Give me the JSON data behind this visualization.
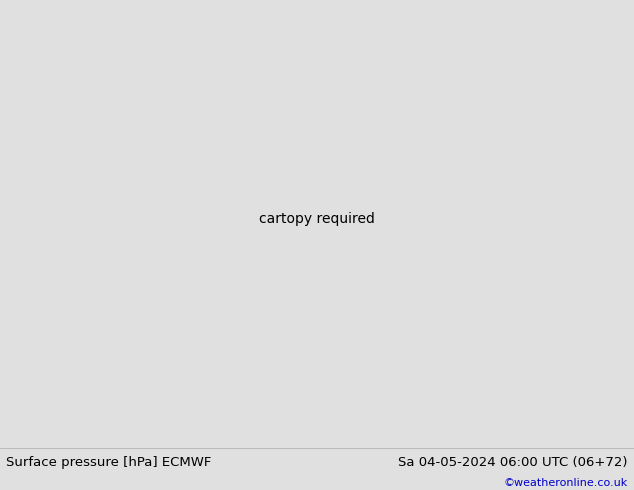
{
  "title_left": "Surface pressure [hPa] ECMWF",
  "title_right": "Sa 04-05-2024 06:00 UTC (06+72)",
  "copyright": "©weatheronline.co.uk",
  "land_color": "#c8f0a0",
  "ocean_color": "#e8e8e8",
  "coast_color": "#888888",
  "bottom_bar_color": "#e0e0e0",
  "bottom_text_color": "#000000",
  "copyright_color": "#0000cc",
  "blue_c": "#0000cc",
  "red_c": "#cc0000",
  "black_c": "#000000",
  "fig_width": 6.34,
  "fig_height": 4.9,
  "dpi": 100,
  "lon_min": 70,
  "lon_max": 175,
  "lat_min": -15,
  "lat_max": 55
}
